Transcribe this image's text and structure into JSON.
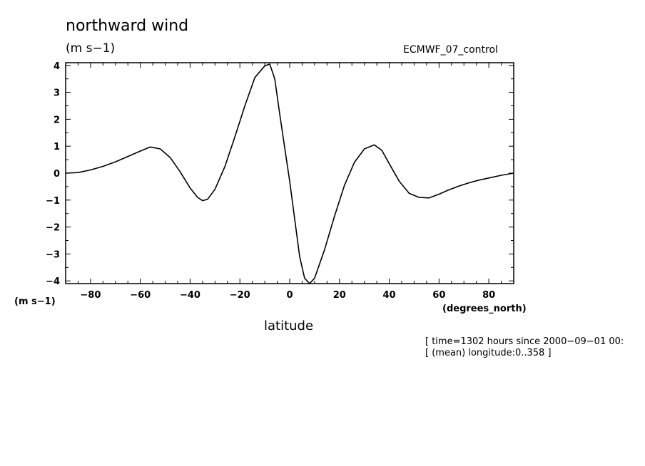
{
  "header": {
    "title": "northward wind",
    "units": "(m s−1)",
    "model": "ECMWF_07_control"
  },
  "axes": {
    "y_units": "(m s−1)",
    "x_units": "(degrees_north)",
    "x_label": "latitude"
  },
  "footer": {
    "time_line": "[ time=1302 hours since 2000−09−01 00:",
    "longitude_line": "[ (mean) longitude:0..358 ]"
  },
  "chart_data": {
    "type": "line",
    "title": "northward wind",
    "xlabel": "latitude",
    "ylabel": "(m s−1)",
    "xlim": [
      -90,
      90
    ],
    "ylim": [
      -4.1,
      4.1
    ],
    "x_ticks": [
      -80,
      -60,
      -40,
      -20,
      0,
      20,
      40,
      60,
      80
    ],
    "x_tick_labels": [
      "−80",
      "−60",
      "−40",
      "−20",
      "0",
      "20",
      "40",
      "60",
      "80"
    ],
    "y_ticks": [
      -4,
      -3,
      -2,
      -1,
      0,
      1,
      2,
      3,
      4
    ],
    "y_tick_labels": [
      "−4",
      "−3",
      "−2",
      "−1",
      "0",
      "1",
      "2",
      "3",
      "4"
    ],
    "grid": false,
    "series": [
      {
        "name": "northward wind",
        "x": [
          -90,
          -85,
          -80,
          -75,
          -70,
          -65,
          -60,
          -56,
          -52,
          -48,
          -44,
          -40,
          -37,
          -35,
          -33,
          -30,
          -26,
          -22,
          -18,
          -14,
          -10,
          -8,
          -6,
          -4,
          -2,
          0,
          2,
          4,
          6,
          8,
          10,
          14,
          18,
          22,
          26,
          30,
          34,
          37,
          40,
          44,
          48,
          52,
          56,
          60,
          64,
          68,
          72,
          76,
          80,
          85,
          90
        ],
        "values": [
          0.0,
          0.02,
          0.12,
          0.25,
          0.42,
          0.62,
          0.82,
          0.97,
          0.9,
          0.58,
          0.05,
          -0.55,
          -0.9,
          -1.02,
          -0.97,
          -0.6,
          0.25,
          1.35,
          2.5,
          3.55,
          3.98,
          4.05,
          3.5,
          2.2,
          0.95,
          -0.3,
          -1.7,
          -3.1,
          -3.9,
          -4.1,
          -3.9,
          -2.85,
          -1.6,
          -0.45,
          0.4,
          0.9,
          1.05,
          0.85,
          0.35,
          -0.3,
          -0.75,
          -0.9,
          -0.92,
          -0.78,
          -0.62,
          -0.48,
          -0.36,
          -0.26,
          -0.18,
          -0.08,
          0.0
        ]
      }
    ]
  }
}
